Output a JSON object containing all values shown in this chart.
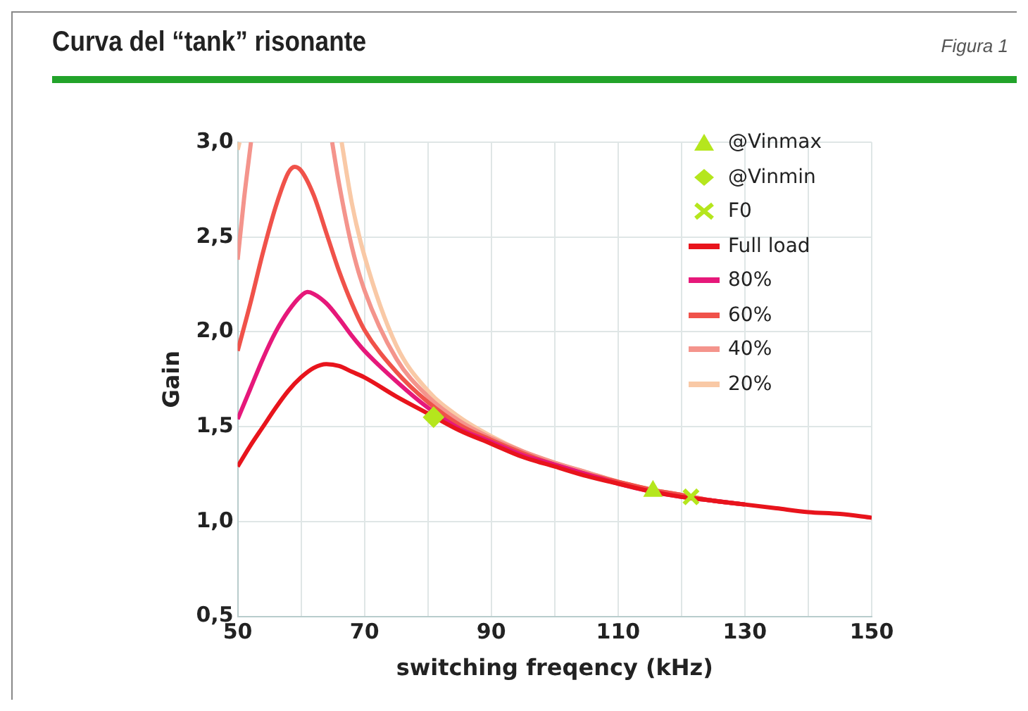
{
  "chart_data": {
    "type": "line",
    "title": "Curva del “tank” risonante",
    "annotations": [
      "Figura 1"
    ],
    "xlabel": "switching freqency (kHz)",
    "ylabel": "Gain",
    "xlim": [
      50,
      150
    ],
    "xticks": [
      50,
      {
        "value": 60,
        "label": null
      },
      70,
      {
        "value": 80,
        "label": null
      },
      90,
      {
        "value": 100,
        "label": null
      },
      110,
      {
        "value": 120,
        "label": null
      },
      130,
      {
        "value": 140,
        "label": null
      },
      150
    ],
    "ylim": [
      0.5,
      3.0
    ],
    "yticks": [
      {
        "value": 0.5,
        "label": "0,5"
      },
      {
        "value": 1.0,
        "label": "1,0"
      },
      {
        "value": 1.5,
        "label": "1,5"
      },
      {
        "value": 2.0,
        "label": "2,0"
      },
      {
        "value": 2.5,
        "label": "2,5"
      },
      {
        "value": 3.0,
        "label": "3,0"
      }
    ],
    "grid": true,
    "legend": "top right",
    "marker": "none",
    "line_style": "solid",
    "series": [
      {
        "name": "@Vinmax",
        "type": "scatter",
        "marker": "triangle",
        "color": "#b5e61d",
        "x": [
          115.5
        ],
        "values": [
          1.16
        ]
      },
      {
        "name": "@Vinmin",
        "type": "scatter",
        "marker": "diamond",
        "color": "#b5e61d",
        "x": [
          80.9
        ],
        "values": [
          1.55
        ]
      },
      {
        "name": "F0",
        "type": "scatter",
        "marker": "cross",
        "color": "#b5e61d",
        "x": [
          121.5
        ],
        "values": [
          1.13
        ]
      },
      {
        "name": "Full load",
        "color": "#e8141c",
        "x": [
          50,
          52,
          54,
          56,
          58,
          60,
          62,
          64,
          66,
          68,
          70,
          75,
          80,
          85,
          90,
          95,
          100,
          105,
          110,
          115,
          120,
          125,
          130,
          135,
          140,
          145,
          150
        ],
        "values": [
          1.29,
          1.4,
          1.5,
          1.6,
          1.69,
          1.76,
          1.81,
          1.83,
          1.82,
          1.79,
          1.76,
          1.66,
          1.57,
          1.48,
          1.41,
          1.34,
          1.29,
          1.24,
          1.2,
          1.16,
          1.13,
          1.11,
          1.09,
          1.07,
          1.05,
          1.04,
          1.02
        ]
      },
      {
        "name": "80%",
        "color": "#e6187a",
        "x": [
          50,
          52,
          54,
          56,
          58,
          60,
          61,
          62,
          64,
          66,
          68,
          70,
          75,
          80,
          85,
          90,
          95,
          100,
          105,
          110,
          115,
          120,
          125,
          130
        ],
        "values": [
          1.54,
          1.7,
          1.86,
          2.0,
          2.11,
          2.19,
          2.21,
          2.2,
          2.15,
          2.07,
          1.98,
          1.9,
          1.74,
          1.6,
          1.49,
          1.42,
          1.35,
          1.3,
          1.25,
          1.2,
          1.16,
          1.13,
          1.11,
          1.09
        ]
      },
      {
        "name": "60%",
        "color": "#f0524a",
        "x": [
          50,
          52,
          54,
          56,
          58,
          59,
          60,
          62,
          64,
          66,
          68,
          70,
          75,
          80,
          85,
          90,
          95,
          100,
          105,
          110,
          115,
          120,
          125,
          130
        ],
        "values": [
          1.9,
          2.15,
          2.42,
          2.66,
          2.84,
          2.87,
          2.85,
          2.72,
          2.52,
          2.32,
          2.15,
          2.01,
          1.79,
          1.63,
          1.51,
          1.43,
          1.36,
          1.3,
          1.25,
          1.21,
          1.17,
          1.14,
          1.11,
          1.09
        ]
      },
      {
        "name": "40%",
        "color": "#f4948c",
        "x": [
          50,
          51,
          52.1,
          58,
          64.9,
          66,
          68,
          70,
          75,
          80,
          85,
          90,
          95,
          100,
          105,
          110,
          115,
          120,
          125,
          130
        ],
        "values": [
          2.38,
          2.7,
          3.0,
          null,
          3.0,
          2.78,
          2.45,
          2.22,
          1.86,
          1.66,
          1.53,
          1.44,
          1.37,
          1.31,
          1.26,
          1.21,
          1.17,
          1.14,
          1.11,
          1.09
        ]
      },
      {
        "name": "20%",
        "color": "#f9c9a6",
        "x": [
          50,
          50.3,
          58,
          66.4,
          68,
          70,
          75,
          80,
          85,
          90,
          95,
          100,
          105,
          110,
          115,
          120,
          125,
          130
        ],
        "values": [
          2.96,
          3.0,
          null,
          3.0,
          2.68,
          2.4,
          1.93,
          1.69,
          1.55,
          1.45,
          1.37,
          1.31,
          1.26,
          1.21,
          1.17,
          1.14,
          1.11,
          1.09
        ]
      }
    ]
  }
}
